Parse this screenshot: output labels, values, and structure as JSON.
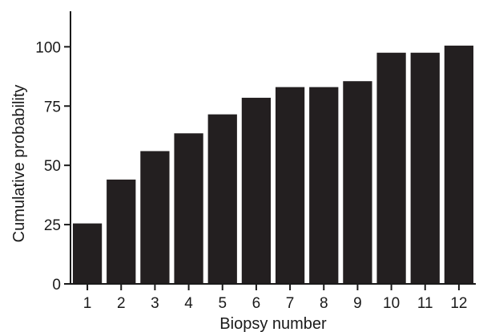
{
  "chart_data": {
    "type": "bar",
    "categories": [
      "1",
      "2",
      "3",
      "4",
      "5",
      "6",
      "7",
      "8",
      "9",
      "10",
      "11",
      "12"
    ],
    "values": [
      25.5,
      44,
      56,
      63.5,
      71.5,
      78.5,
      83,
      83,
      85.5,
      97.5,
      97.5,
      100.5
    ],
    "title": "",
    "xlabel": "Biopsy number",
    "ylabel": "Cumulative probability",
    "ylim": [
      0,
      115
    ],
    "yticks": [
      0,
      25,
      50,
      75,
      100
    ],
    "grid": false,
    "bar_color": "#231f20",
    "axis_color": "#1a1a1a"
  }
}
